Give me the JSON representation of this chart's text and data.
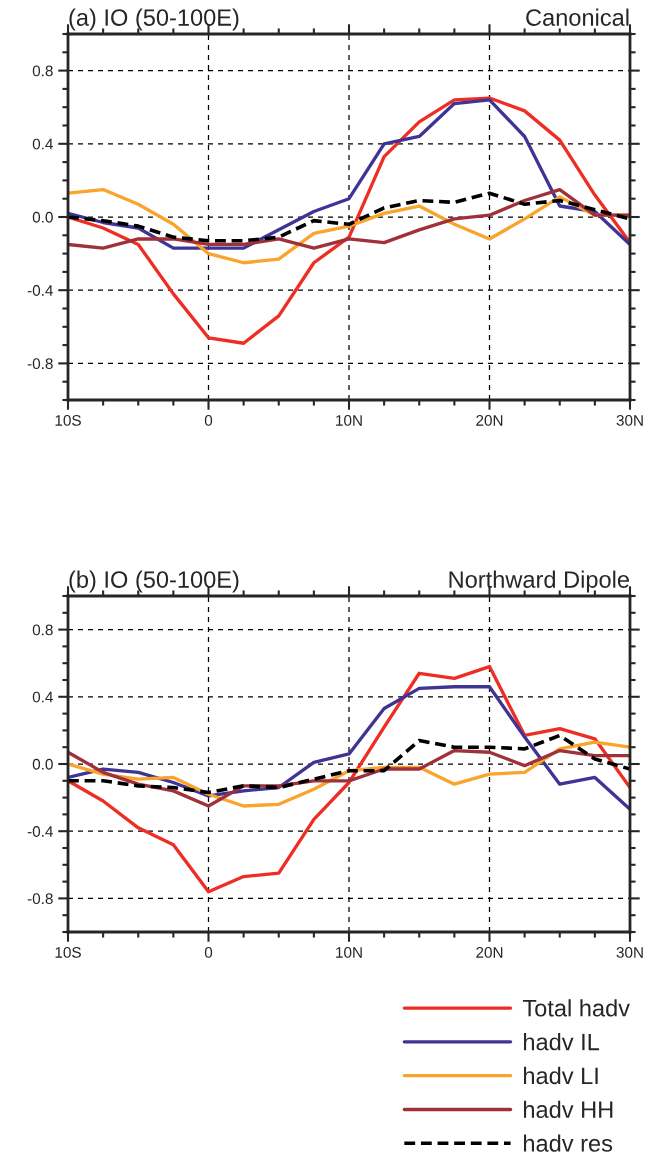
{
  "chart_data": [
    {
      "type": "line",
      "title": "(a) IO (50-100E)",
      "subtitle": "Canonical",
      "x": [
        -10,
        -7.5,
        -5,
        -2.5,
        0,
        2.5,
        5,
        7.5,
        10,
        12.5,
        15,
        17.5,
        20,
        22.5,
        25,
        27.5,
        30
      ],
      "xlim": [
        -10,
        30
      ],
      "xticks": [
        {
          "value": -10,
          "label": "10S"
        },
        {
          "value": 0,
          "label": "0"
        },
        {
          "value": 10,
          "label": "10N"
        },
        {
          "value": 20,
          "label": "20N"
        },
        {
          "value": 30,
          "label": "30N"
        }
      ],
      "ylim": [
        -1,
        1
      ],
      "yticks": [
        {
          "value": -0.8,
          "label": "-0.8"
        },
        {
          "value": -0.4,
          "label": "-0.4"
        },
        {
          "value": 0,
          "label": "0.0"
        },
        {
          "value": 0.4,
          "label": "0.4"
        },
        {
          "value": 0.8,
          "label": "0.8"
        }
      ],
      "grid": true,
      "legend": false,
      "series": [
        {
          "color": "#ee2e24",
          "values": [
            0.0,
            -0.06,
            -0.15,
            -0.42,
            -0.66,
            -0.69,
            -0.54,
            -0.25,
            -0.11,
            0.33,
            0.52,
            0.64,
            0.65,
            0.58,
            0.42,
            0.12,
            -0.14
          ]
        },
        {
          "color": "#3f3494",
          "values": [
            0.02,
            -0.03,
            -0.06,
            -0.17,
            -0.17,
            -0.17,
            -0.07,
            0.03,
            0.1,
            0.4,
            0.44,
            0.62,
            0.64,
            0.44,
            0.06,
            0.03,
            -0.15
          ]
        },
        {
          "color": "#f9a42b",
          "values": [
            0.13,
            0.15,
            0.07,
            -0.04,
            -0.2,
            -0.25,
            -0.23,
            -0.09,
            -0.05,
            0.02,
            0.06,
            -0.04,
            -0.12,
            -0.01,
            0.11,
            0.01,
            0.01
          ]
        },
        {
          "color": "#a0303a",
          "values": [
            -0.15,
            -0.17,
            -0.12,
            -0.12,
            -0.15,
            -0.15,
            -0.12,
            -0.17,
            -0.12,
            -0.14,
            -0.07,
            -0.01,
            0.01,
            0.09,
            0.15,
            0.01,
            0.01
          ]
        },
        {
          "color": "#000000",
          "line_style": "dashed",
          "values": [
            0.0,
            -0.02,
            -0.05,
            -0.11,
            -0.13,
            -0.13,
            -0.11,
            -0.02,
            -0.04,
            0.05,
            0.09,
            0.08,
            0.13,
            0.07,
            0.09,
            0.04,
            -0.01
          ]
        }
      ]
    },
    {
      "type": "line",
      "title": "(b) IO (50-100E)",
      "subtitle": "Northward Dipole",
      "x": [
        -10,
        -7.5,
        -5,
        -2.5,
        0,
        2.5,
        5,
        7.5,
        10,
        12.5,
        15,
        17.5,
        20,
        22.5,
        25,
        27.5,
        30
      ],
      "xlim": [
        -10,
        30
      ],
      "xticks": [
        {
          "value": -10,
          "label": "10S"
        },
        {
          "value": 0,
          "label": "0"
        },
        {
          "value": 10,
          "label": "10N"
        },
        {
          "value": 20,
          "label": "20N"
        },
        {
          "value": 30,
          "label": "30N"
        }
      ],
      "ylim": [
        -1,
        1
      ],
      "yticks": [
        {
          "value": -0.8,
          "label": "-0.8"
        },
        {
          "value": -0.4,
          "label": "-0.4"
        },
        {
          "value": 0,
          "label": "0.0"
        },
        {
          "value": 0.4,
          "label": "0.4"
        },
        {
          "value": 0.8,
          "label": "0.8"
        }
      ],
      "grid": true,
      "legend": "bottom right",
      "series": [
        {
          "name": "Total hadv",
          "color": "#ee2e24",
          "values": [
            -0.1,
            -0.22,
            -0.38,
            -0.48,
            -0.76,
            -0.67,
            -0.65,
            -0.33,
            -0.11,
            0.22,
            0.54,
            0.51,
            0.58,
            0.17,
            0.21,
            0.15,
            -0.14
          ]
        },
        {
          "name": "hadv IL",
          "color": "#3f3494",
          "values": [
            -0.08,
            -0.03,
            -0.05,
            -0.11,
            -0.19,
            -0.16,
            -0.14,
            0.01,
            0.06,
            0.33,
            0.45,
            0.46,
            0.46,
            0.16,
            -0.12,
            -0.08,
            -0.27
          ]
        },
        {
          "name": "hadv LI",
          "color": "#f9a42b",
          "values": [
            0.0,
            -0.06,
            -0.09,
            -0.08,
            -0.18,
            -0.25,
            -0.24,
            -0.15,
            -0.04,
            -0.02,
            -0.02,
            -0.12,
            -0.06,
            -0.05,
            0.09,
            0.13,
            0.1
          ]
        },
        {
          "name": "hadv HH",
          "color": "#a0303a",
          "values": [
            0.07,
            -0.05,
            -0.12,
            -0.16,
            -0.25,
            -0.13,
            -0.13,
            -0.1,
            -0.1,
            -0.03,
            -0.03,
            0.08,
            0.07,
            -0.01,
            0.08,
            0.05,
            0.05
          ]
        },
        {
          "name": "hadv res",
          "color": "#000000",
          "line_style": "dashed",
          "values": [
            -0.1,
            -0.1,
            -0.13,
            -0.14,
            -0.17,
            -0.13,
            -0.14,
            -0.09,
            -0.04,
            -0.04,
            0.14,
            0.1,
            0.1,
            0.09,
            0.17,
            0.03,
            -0.03
          ]
        }
      ]
    }
  ]
}
